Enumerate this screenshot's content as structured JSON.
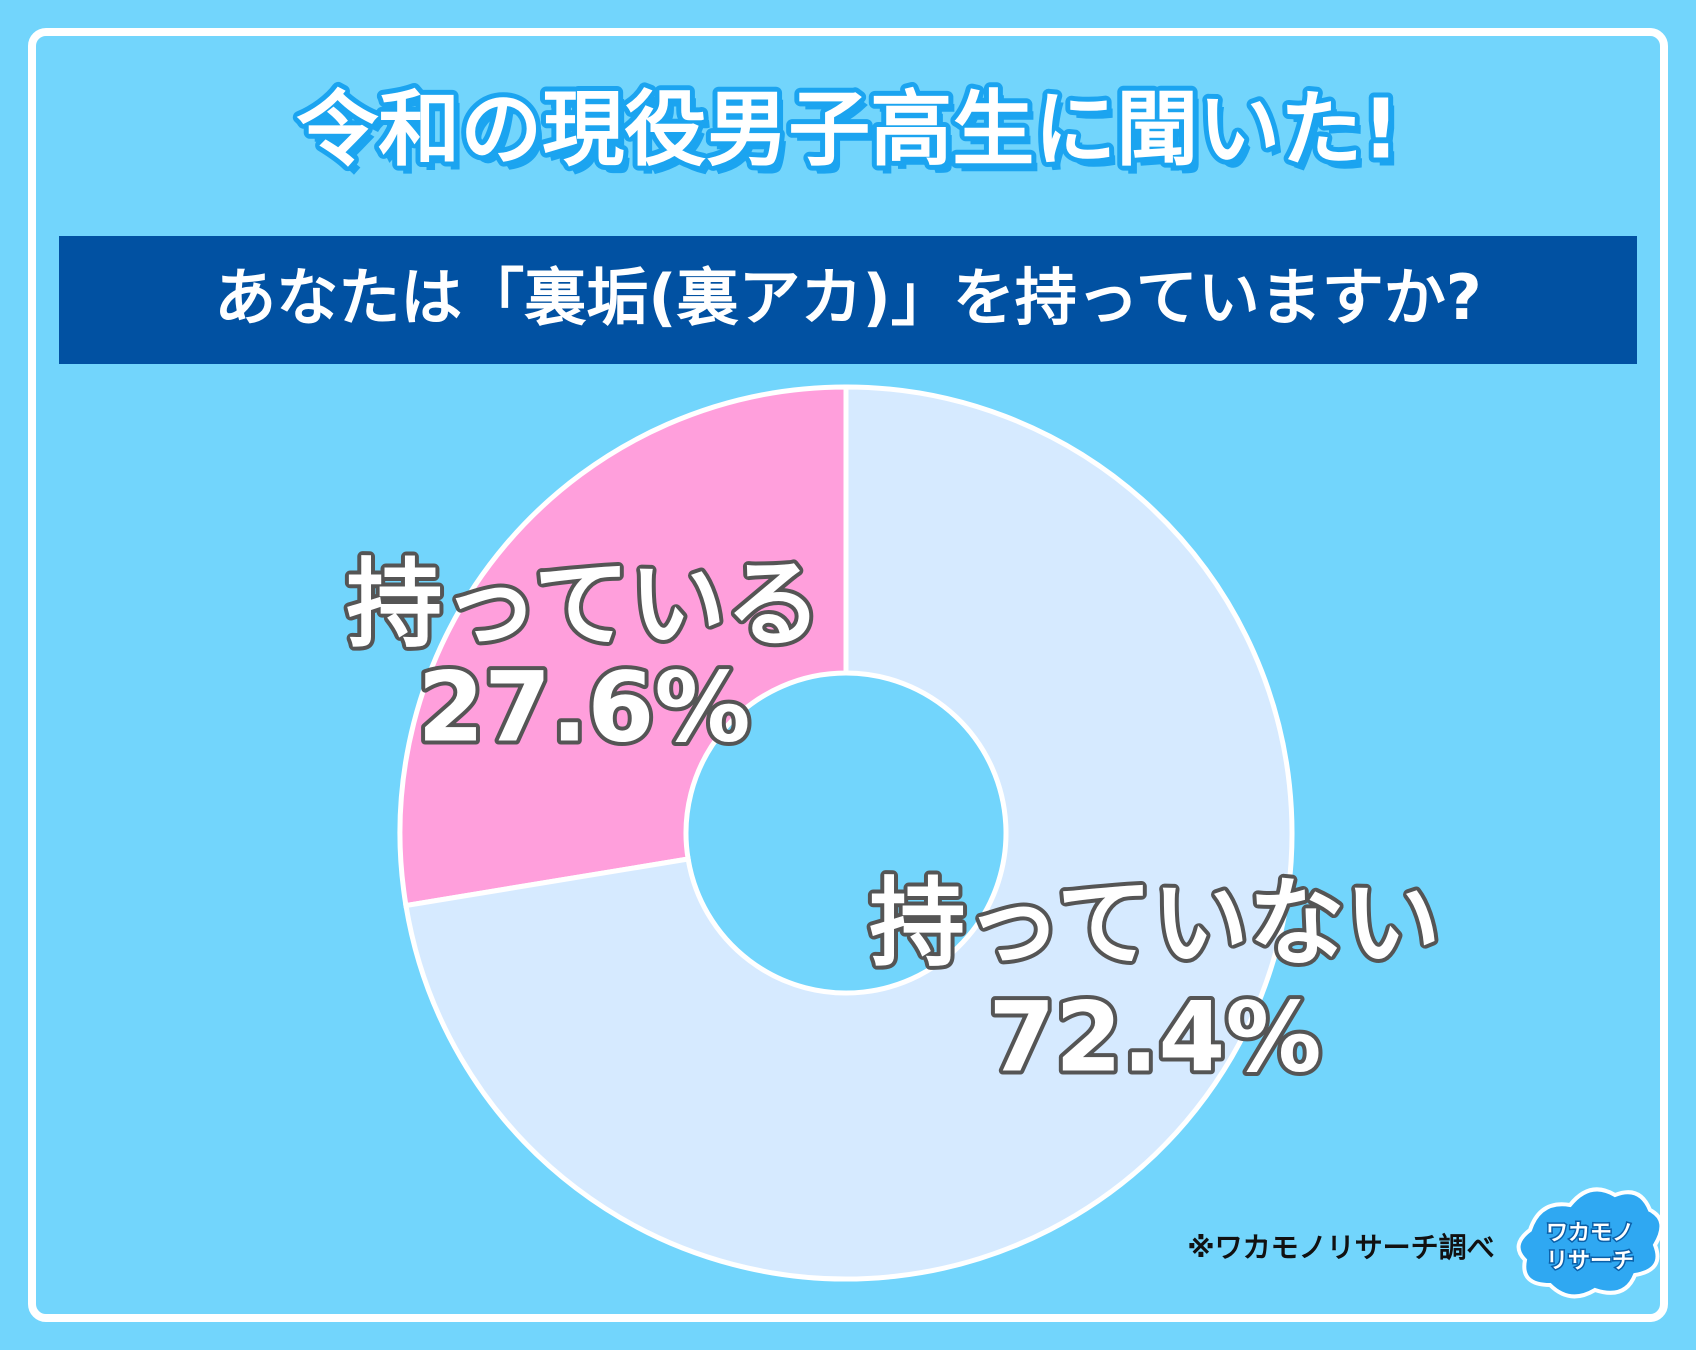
{
  "chart_data": {
    "type": "pie",
    "donut": true,
    "title": "令和の現役男子高生に聞いた!",
    "subtitle": "あなたは「裏垢(裏アカ)」を持っていますか?",
    "categories": [
      "持っている",
      "持っていない"
    ],
    "values": [
      27.6,
      72.4
    ],
    "value_labels": [
      "27.6%",
      "72.4%"
    ],
    "colors": [
      "#ff9fdc",
      "#d6eaff"
    ],
    "source": "※ワカモノリサーチ調べ",
    "logo": [
      "ワカモノ",
      "リサーチ"
    ]
  }
}
